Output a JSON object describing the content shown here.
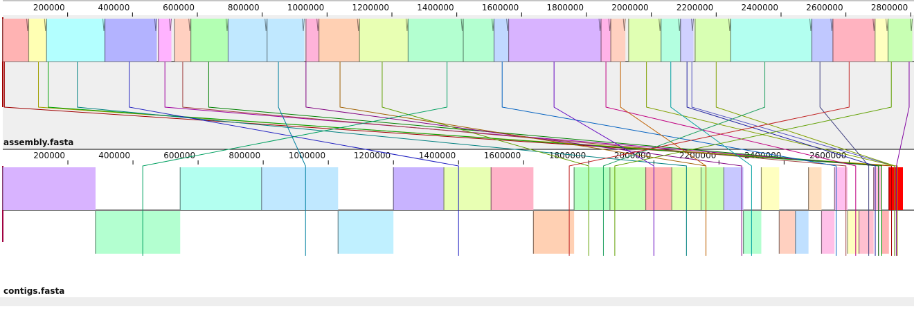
{
  "sequences": [
    {
      "name": "assembly.fasta",
      "ruler_ticks": [
        200000,
        400000,
        600000,
        800000,
        1000000,
        1200000,
        1400000,
        1600000,
        1800000,
        2000000,
        2200000,
        2400000,
        2600000,
        2800000
      ],
      "max_position": 2810000,
      "blocks": [
        {
          "start": 0,
          "end": 80000,
          "color": "#ffb3b3",
          "strand": "+"
        },
        {
          "start": 80000,
          "end": 135000,
          "color": "#ffffb3",
          "strand": "+"
        },
        {
          "start": 135000,
          "end": 315000,
          "color": "#b3ffff",
          "strand": "+"
        },
        {
          "start": 315000,
          "end": 475000,
          "color": "#b3b3ff",
          "strand": "+"
        },
        {
          "start": 480000,
          "end": 520000,
          "color": "#ffb3ff",
          "strand": "+"
        },
        {
          "start": 530000,
          "end": 580000,
          "color": "#ffd0c0",
          "strand": "+"
        },
        {
          "start": 580000,
          "end": 695000,
          "color": "#b3ffb3",
          "strand": "+"
        },
        {
          "start": 695000,
          "end": 815000,
          "color": "#c0e8ff",
          "strand": "+"
        },
        {
          "start": 815000,
          "end": 930000,
          "color": "#c0e8ff",
          "strand": "+"
        },
        {
          "start": 935000,
          "end": 975000,
          "color": "#ffb3d9",
          "strand": "+"
        },
        {
          "start": 975000,
          "end": 1100000,
          "color": "#ffd0b3",
          "strand": "+"
        },
        {
          "start": 1100000,
          "end": 1250000,
          "color": "#e8ffb3",
          "strand": "+"
        },
        {
          "start": 1250000,
          "end": 1420000,
          "color": "#b3ffd0",
          "strand": "+"
        },
        {
          "start": 1420000,
          "end": 1515000,
          "color": "#b3ffd0",
          "strand": "+"
        },
        {
          "start": 1515000,
          "end": 1560000,
          "color": "#c0d8ff",
          "strand": "+"
        },
        {
          "start": 1560000,
          "end": 1845000,
          "color": "#d8b3ff",
          "strand": "+"
        },
        {
          "start": 1845000,
          "end": 1875000,
          "color": "#ffb3e8",
          "strand": "+"
        },
        {
          "start": 1875000,
          "end": 1920000,
          "color": "#ffd0c0",
          "strand": "+"
        },
        {
          "start": 1930000,
          "end": 2030000,
          "color": "#e0ffb3",
          "strand": "+"
        },
        {
          "start": 2030000,
          "end": 2090000,
          "color": "#b3ffe0",
          "strand": "+"
        },
        {
          "start": 2090000,
          "end": 2130000,
          "color": "#d0d0ff",
          "strand": "+"
        },
        {
          "start": 2135000,
          "end": 2245000,
          "color": "#d8ffb3",
          "strand": "+"
        },
        {
          "start": 2245000,
          "end": 2495000,
          "color": "#b3fff0",
          "strand": "+"
        },
        {
          "start": 2495000,
          "end": 2560000,
          "color": "#c0c8ff",
          "strand": "+"
        },
        {
          "start": 2560000,
          "end": 2690000,
          "color": "#ffb3c0",
          "strand": "+"
        },
        {
          "start": 2690000,
          "end": 2730000,
          "color": "#ffffc0",
          "strand": "+"
        },
        {
          "start": 2730000,
          "end": 2805000,
          "color": "#c8ffb3",
          "strand": "+"
        }
      ]
    },
    {
      "name": "contigs.fasta",
      "ruler_ticks": [
        200000,
        400000,
        600000,
        800000,
        1000000,
        1200000,
        1400000,
        1600000,
        1800000,
        2000000,
        2200000,
        2400000,
        2600000
      ],
      "max_position": 2765000,
      "blocks": [
        {
          "start": 0,
          "end": 285000,
          "color": "#d8b3ff",
          "strand": "+"
        },
        {
          "start": 285000,
          "end": 545000,
          "color": "#b3ffd0",
          "strand": "-"
        },
        {
          "start": 545000,
          "end": 795000,
          "color": "#b3fff0",
          "strand": "+"
        },
        {
          "start": 795000,
          "end": 1030000,
          "color": "#c0e8ff",
          "strand": "+"
        },
        {
          "start": 1030000,
          "end": 1200000,
          "color": "#c0f0ff",
          "strand": "-"
        },
        {
          "start": 1200000,
          "end": 1355000,
          "color": "#c8b3ff",
          "strand": "+"
        },
        {
          "start": 1355000,
          "end": 1500000,
          "color": "#e8ffb3",
          "strand": "+"
        },
        {
          "start": 1500000,
          "end": 1630000,
          "color": "#ffb3c8",
          "strand": "+"
        },
        {
          "start": 1630000,
          "end": 1755000,
          "color": "#ffd0b3",
          "strand": "-"
        },
        {
          "start": 1755000,
          "end": 1865000,
          "color": "#b3ffc0",
          "strand": "+"
        },
        {
          "start": 1865000,
          "end": 1975000,
          "color": "#c8ffb3",
          "strand": "+"
        },
        {
          "start": 1975000,
          "end": 2055000,
          "color": "#ffb3b3",
          "strand": "+"
        },
        {
          "start": 2055000,
          "end": 2145000,
          "color": "#e0ffb3",
          "strand": "+"
        },
        {
          "start": 2145000,
          "end": 2215000,
          "color": "#c8ffb3",
          "strand": "+"
        },
        {
          "start": 2215000,
          "end": 2275000,
          "color": "#c8c8ff",
          "strand": "+"
        },
        {
          "start": 2275000,
          "end": 2330000,
          "color": "#b3ffd0",
          "strand": "-"
        },
        {
          "start": 2330000,
          "end": 2385000,
          "color": "#ffffc0",
          "strand": "+"
        },
        {
          "start": 2385000,
          "end": 2435000,
          "color": "#ffd0c0",
          "strand": "-"
        },
        {
          "start": 2435000,
          "end": 2475000,
          "color": "#c0e0ff",
          "strand": "-"
        },
        {
          "start": 2475000,
          "end": 2515000,
          "color": "#ffe0c0",
          "strand": "+"
        },
        {
          "start": 2515000,
          "end": 2555000,
          "color": "#ffc0e8",
          "strand": "-"
        },
        {
          "start": 2555000,
          "end": 2595000,
          "color": "#ffc0f0",
          "strand": "+"
        },
        {
          "start": 2595000,
          "end": 2630000,
          "color": "#ffffc0",
          "strand": "-"
        },
        {
          "start": 2630000,
          "end": 2675000,
          "color": "#ffc0d0",
          "strand": "-"
        },
        {
          "start": 2675000,
          "end": 2700000,
          "color": "#ffc0e0",
          "strand": "+"
        },
        {
          "start": 2700000,
          "end": 2722000,
          "color": "#ffb3b3",
          "strand": "-"
        },
        {
          "start": 2722000,
          "end": 2765000,
          "color": "#ff0000",
          "strand": "+"
        }
      ]
    }
  ],
  "connections": [
    {
      "a": 5000,
      "b": 2730000,
      "color": "#a00000"
    },
    {
      "a": 110000,
      "b": 2748000,
      "color": "#a0a000"
    },
    {
      "a": 140000,
      "b": 2700000,
      "color": "#00a000"
    },
    {
      "a": 230000,
      "b": 2100000,
      "color": "#008080"
    },
    {
      "a": 390000,
      "b": 1400000,
      "color": "#2020c0"
    },
    {
      "a": 500000,
      "b": 2690000,
      "color": "#a000a0"
    },
    {
      "a": 555000,
      "b": 2590000,
      "color": "#a04040"
    },
    {
      "a": 635000,
      "b": 2690000,
      "color": "#008000"
    },
    {
      "a": 850000,
      "b": 930000,
      "color": "#0080a0"
    },
    {
      "a": 935000,
      "b": 2270000,
      "color": "#800080"
    },
    {
      "a": 1040000,
      "b": 2160000,
      "color": "#a06000"
    },
    {
      "a": 1170000,
      "b": 1800000,
      "color": "#60a000"
    },
    {
      "a": 1370000,
      "b": 430000,
      "color": "#00a060"
    },
    {
      "a": 1540000,
      "b": 2560000,
      "color": "#0060c0"
    },
    {
      "a": 1700000,
      "b": 2000000,
      "color": "#6000c0"
    },
    {
      "a": 1860000,
      "b": 2620000,
      "color": "#c00080"
    },
    {
      "a": 1905000,
      "b": 2160000,
      "color": "#c06000"
    },
    {
      "a": 1985000,
      "b": 2740000,
      "color": "#80a000"
    },
    {
      "a": 2060000,
      "b": 2300000,
      "color": "#00a0a0"
    },
    {
      "a": 2110000,
      "b": 2680000,
      "color": "#2020a0"
    },
    {
      "a": 2125000,
      "b": 2740000,
      "color": "#5050c0"
    },
    {
      "a": 2200000,
      "b": 2740000,
      "color": "#80a000"
    },
    {
      "a": 2350000,
      "b": 1845000,
      "color": "#20a060"
    },
    {
      "a": 2520000,
      "b": 2660000,
      "color": "#404080"
    },
    {
      "a": 2610000,
      "b": 1740000,
      "color": "#c02020"
    },
    {
      "a": 2740000,
      "b": 1880000,
      "color": "#60a000"
    },
    {
      "a": 2795000,
      "b": 2745000,
      "color": "#8000a0"
    }
  ]
}
